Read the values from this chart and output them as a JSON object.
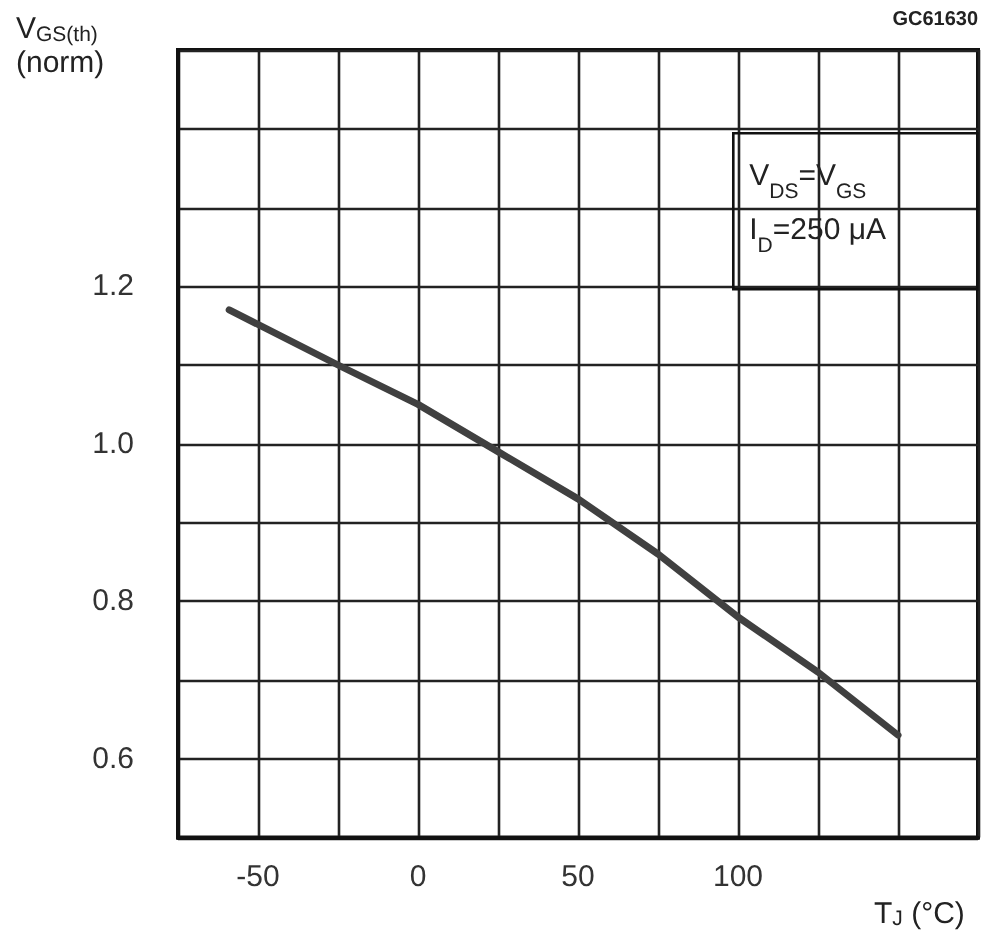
{
  "chart_data": {
    "type": "line",
    "ylabel": "V$_{GS(th)}$\n(norm)",
    "xlabel": "T$_{J}$ (°C)",
    "annotations": [
      "GC61630",
      "V$_{DS}$=V$_{GS}$\nI$_{D}$=250 μA"
    ],
    "x": [
      -59,
      -25,
      0,
      25,
      50,
      75,
      100,
      125,
      150
    ],
    "series": [
      {
        "color": "#404040",
        "values": [
          1.17,
          1.1,
          1.05,
          0.99,
          0.93,
          0.86,
          0.78,
          0.71,
          0.63
        ]
      }
    ],
    "xlim": [
      -75,
      175
    ],
    "xticks": [
      {
        "value": -75,
        "label": null
      },
      -50,
      {
        "value": -25,
        "label": null
      },
      0,
      {
        "value": 25,
        "label": null
      },
      50,
      {
        "value": 75,
        "label": null
      },
      100,
      {
        "value": 125,
        "label": null
      },
      {
        "value": 150,
        "label": null
      },
      {
        "value": 175,
        "label": null
      }
    ],
    "ylim": [
      0.5,
      1.5
    ],
    "yticks": [
      {
        "value": 0.5,
        "label": null
      },
      0.6,
      {
        "value": 0.7,
        "label": null
      },
      0.8,
      {
        "value": 0.9,
        "label": null
      },
      {
        "value": 1,
        "label": "1.0"
      },
      {
        "value": 1.1,
        "label": null
      },
      1.2,
      {
        "value": 1.3,
        "label": null
      },
      {
        "value": 1.4,
        "label": null
      },
      {
        "value": 1.5,
        "label": null
      }
    ],
    "grid": true,
    "marker": "none",
    "line_style": "solid"
  }
}
